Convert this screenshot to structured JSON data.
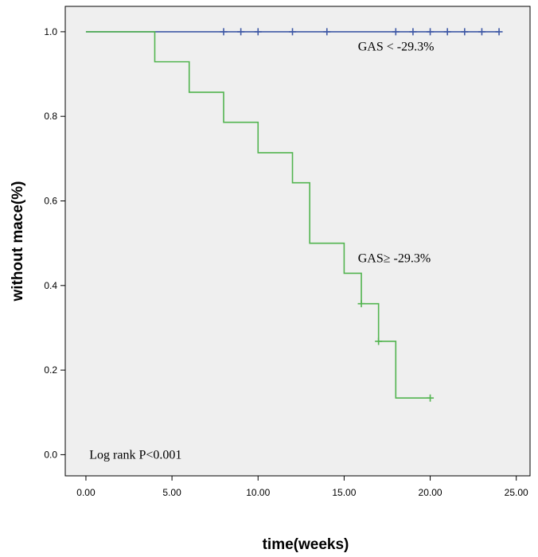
{
  "chart_data": {
    "type": "line",
    "title": "",
    "xlabel": "time(weeks)",
    "ylabel": "without mace(%)",
    "xlim": [
      -1.2,
      25.8
    ],
    "ylim": [
      -0.05,
      1.06
    ],
    "x_ticks": [
      "0.00",
      "5.00",
      "10.00",
      "15.00",
      "20.00",
      "25.00"
    ],
    "y_ticks": [
      "0.0",
      "0.2",
      "0.4",
      "0.6",
      "0.8",
      "1.0"
    ],
    "grid": false,
    "background_color": "#efefef",
    "series": [
      {
        "name": "GAS < -29.3%",
        "color": "#3f59a6",
        "steps": [
          [
            0,
            1.0
          ],
          [
            24,
            1.0
          ]
        ],
        "censored": [
          [
            8,
            1.0
          ],
          [
            9,
            1.0
          ],
          [
            10,
            1.0
          ],
          [
            12,
            1.0
          ],
          [
            14,
            1.0
          ],
          [
            18,
            1.0
          ],
          [
            19,
            1.0
          ],
          [
            20,
            1.0
          ],
          [
            21,
            1.0
          ],
          [
            22,
            1.0
          ],
          [
            23,
            1.0
          ],
          [
            24,
            1.0
          ]
        ]
      },
      {
        "name": "GAS≥ -29.3%",
        "color": "#52b44f",
        "steps": [
          [
            0,
            1.0
          ],
          [
            4,
            0.929
          ],
          [
            6,
            0.857
          ],
          [
            8,
            0.786
          ],
          [
            10,
            0.714
          ],
          [
            12,
            0.643
          ],
          [
            13,
            0.5
          ],
          [
            15,
            0.429
          ],
          [
            16,
            0.357
          ],
          [
            17,
            0.268
          ],
          [
            18,
            0.134
          ],
          [
            20,
            0.134
          ]
        ],
        "censored": [
          [
            16,
            0.357
          ],
          [
            17,
            0.268
          ],
          [
            20,
            0.134
          ]
        ]
      }
    ],
    "annotations": [
      {
        "text": "GAS < -29.3%",
        "x": 15.8,
        "y": 0.965
      },
      {
        "text": "GAS≥ -29.3%",
        "x": 15.8,
        "y": 0.465
      },
      {
        "text": "Log rank P<0.001",
        "x": 0.2,
        "y": 0.0
      }
    ]
  }
}
